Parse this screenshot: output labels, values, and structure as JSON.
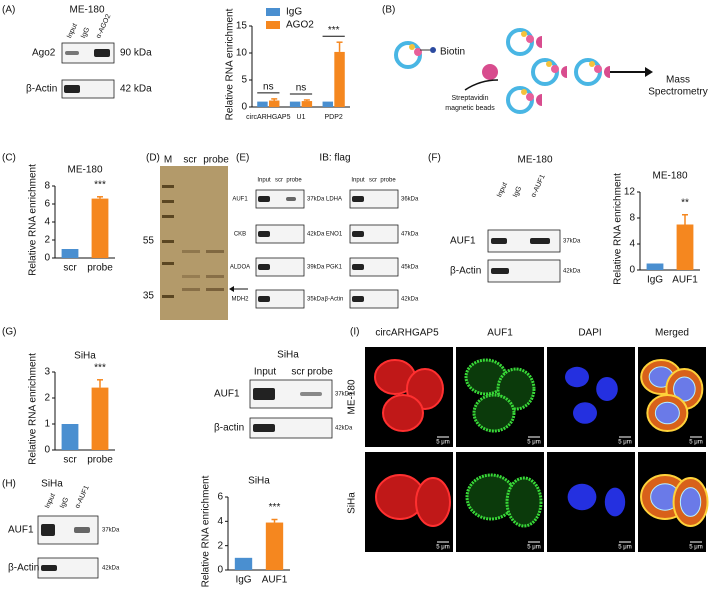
{
  "chart_data": [
    {
      "type": "bar",
      "categories": [
        "circARHGAP5",
        "U1",
        "PDP2"
      ],
      "series": [
        {
          "name": "IgG",
          "color": "#4a8fd0",
          "values": [
            1,
            1,
            1
          ],
          "errors": [
            null,
            null,
            null
          ]
        },
        {
          "name": "AGO2",
          "color": "#f5871f",
          "values": [
            1.2,
            1.1,
            10.2
          ],
          "errors": [
            0.3,
            0.2,
            1.8
          ]
        }
      ],
      "y_label": "Relative RNA enrichment",
      "ylim": [
        0,
        15
      ],
      "yticks": [
        0,
        5,
        10,
        15
      ],
      "annotations": [
        "ns",
        "ns",
        "***"
      ],
      "legend": "top"
    },
    {
      "type": "bar",
      "title": "ME-180",
      "categories": [
        "scr",
        "probe"
      ],
      "values": [
        1,
        6.6
      ],
      "errors": [
        null,
        0.2
      ],
      "colors": [
        "#4a8fd0",
        "#f5871f"
      ],
      "y_label": "Relative RNA enrichment",
      "ylim": [
        0,
        8
      ],
      "yticks": [
        0,
        2,
        4,
        6,
        8
      ],
      "annotations": [
        null,
        "***"
      ]
    },
    {
      "type": "bar",
      "title": "ME-180",
      "categories": [
        "IgG",
        "AUF1"
      ],
      "values": [
        1,
        7
      ],
      "errors": [
        null,
        1.5
      ],
      "colors": [
        "#4a8fd0",
        "#f5871f"
      ],
      "y_label": "Relative RNA enrichment",
      "ylim": [
        0,
        12
      ],
      "yticks": [
        0,
        4,
        8,
        12
      ],
      "annotations": [
        null,
        "**"
      ]
    },
    {
      "type": "bar",
      "title": "SiHa",
      "categories": [
        "scr",
        "probe"
      ],
      "values": [
        1,
        2.4
      ],
      "errors": [
        null,
        0.3
      ],
      "colors": [
        "#4a8fd0",
        "#f5871f"
      ],
      "y_label": "Relative RNA enrichment",
      "ylim": [
        0,
        3
      ],
      "yticks": [
        0,
        1,
        2,
        3
      ],
      "annotations": [
        null,
        "***"
      ]
    },
    {
      "type": "bar",
      "title": "SiHa",
      "categories": [
        "IgG",
        "AUF1"
      ],
      "values": [
        1,
        3.9
      ],
      "errors": [
        null,
        0.25
      ],
      "colors": [
        "#4a8fd0",
        "#f5871f"
      ],
      "y_label": "Relative RNA enrichment",
      "ylim": [
        0,
        6
      ],
      "yticks": [
        0,
        2,
        4,
        6
      ],
      "annotations": [
        null,
        "***"
      ]
    }
  ],
  "figure": {
    "panel_labels": [
      "(A)",
      "(B)",
      "(C)",
      "(D)",
      "(E)",
      "(F)",
      "(G)",
      "(H)",
      "(I)"
    ],
    "A": {
      "cell_line": "ME-180",
      "lanes": [
        "Input",
        "IgG",
        "α-AGO2"
      ],
      "rows": [
        {
          "protein": "Ago2",
          "size": "90 kDa"
        },
        {
          "protein": "β-Actin",
          "size": "42 kDa"
        }
      ]
    },
    "B": {
      "biotin": "Biotin",
      "beads": [
        "Streptavidin",
        "magnetic beads"
      ],
      "output": [
        "Mass",
        "Spectrometry"
      ]
    },
    "D": {
      "lanes": [
        "M",
        "scr",
        "probe"
      ],
      "markers": [
        "55",
        "35"
      ]
    },
    "E": {
      "title": "IB: flag",
      "lanes": [
        "Input",
        "scr",
        "probe"
      ],
      "left_rows": [
        {
          "protein": "AUF1",
          "size": "37kDa"
        },
        {
          "protein": "CKB",
          "size": "42kDa"
        },
        {
          "protein": "ALDOA",
          "size": "39kDa"
        },
        {
          "protein": "MDH2",
          "size": "35kDa"
        }
      ],
      "right_rows": [
        {
          "protein": "LDHA",
          "size": "36kDa"
        },
        {
          "protein": "ENO1",
          "size": "47kDa"
        },
        {
          "protein": "PGK1",
          "size": "45kDa"
        },
        {
          "protein": "β-Actin",
          "size": "42kDa"
        }
      ]
    },
    "F": {
      "cell_line": "ME-180",
      "lanes": [
        "Input",
        "IgG",
        "α-AUF1"
      ],
      "rows": [
        {
          "protein": "AUF1",
          "size": "37kDa"
        },
        {
          "protein": "β-Actin",
          "size": "42kDa"
        }
      ]
    },
    "G": {
      "cell_line": "SiHa",
      "lanes": [
        "Input",
        "scr",
        "probe"
      ],
      "rows": [
        {
          "protein": "AUF1",
          "size": "37kDa"
        },
        {
          "protein": "β-actin",
          "size": "42kDa"
        }
      ]
    },
    "H": {
      "cell_line": "SiHa",
      "lanes": [
        "Input",
        "IgG",
        "α-AUF1"
      ],
      "rows": [
        {
          "protein": "AUF1",
          "size": "37kDa"
        },
        {
          "protein": "β-Actin",
          "size": "42kDa"
        }
      ]
    },
    "I": {
      "columns": [
        "circARHGAP5",
        "AUF1",
        "DAPI",
        "Merged"
      ],
      "rows": [
        "ME-180",
        "SiHa"
      ],
      "scale_bar": "5 μm"
    }
  }
}
